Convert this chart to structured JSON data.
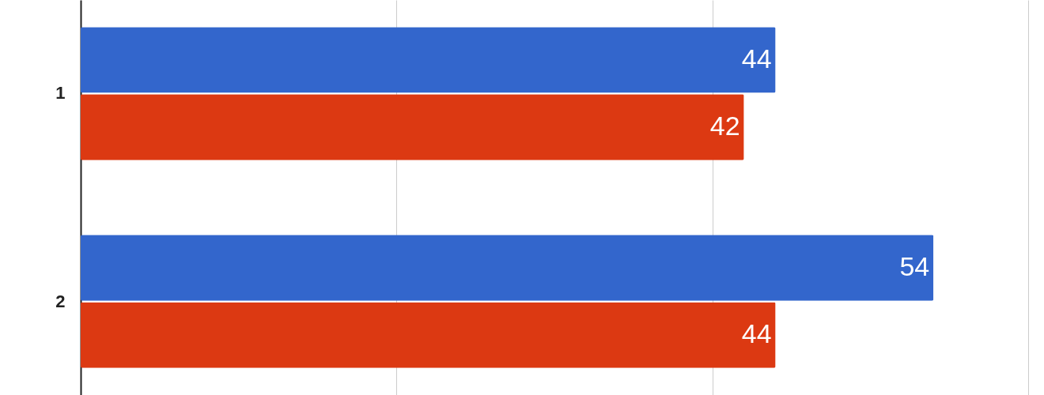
{
  "chart_data": {
    "type": "bar",
    "orientation": "horizontal",
    "categories": [
      "1",
      "2"
    ],
    "series": [
      {
        "color": "#3366cc",
        "values": [
          44,
          54
        ]
      },
      {
        "color": "#dc3912",
        "values": [
          42,
          44
        ]
      }
    ],
    "xlim": [
      0,
      61
    ],
    "xticks": [
      {
        "value": 0,
        "label": null
      },
      {
        "value": 20,
        "label": null
      },
      {
        "value": 40,
        "label": null
      },
      {
        "value": 60,
        "label": null
      }
    ],
    "grid": "x",
    "tick_labels": "y",
    "data_labels": true
  }
}
